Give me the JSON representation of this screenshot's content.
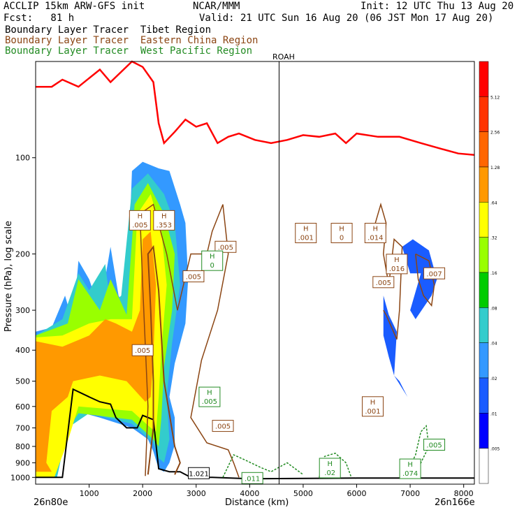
{
  "header": {
    "model": "ACCLIP 15km ARW-GFS init",
    "org": "NCAR/MMM",
    "init": "Init: 12 UTC Thu 13 Aug 20",
    "fcst": "Fcst:   81 h",
    "valid": "Valid: 21 UTC Sun 16 Aug 20 (06 JST Mon 17 Aug 20)"
  },
  "legend": [
    {
      "label": "Boundary Layer Tracer  Tibet Region",
      "color": "#000000"
    },
    {
      "label": "Boundary Layer Tracer  Eastern China Region",
      "color": "#8b4513"
    },
    {
      "label": "Boundary Layer Tracer  West Pacific Region",
      "color": "#228b22"
    }
  ],
  "chart_data": {
    "type": "cross-section",
    "title": "",
    "xlabel": "Distance (km)",
    "ylabel": "Pressure (hPa), log scale",
    "xlim": [
      0,
      8200
    ],
    "ylim": [
      1050,
      50
    ],
    "y_scale": "log",
    "x_ticks": [
      1000,
      2000,
      3000,
      4000,
      5000,
      6000,
      7000,
      8000
    ],
    "y_ticks": [
      100,
      200,
      300,
      400,
      500,
      600,
      700,
      800,
      900,
      1000
    ],
    "endpoint_left": "26n80e",
    "endpoint_right": "26n166e",
    "vertical_marker": {
      "label": "ROAH",
      "x": 4550
    },
    "colorbar": {
      "levels": [
        ".005",
        ".01",
        ".02",
        ".04",
        ".08",
        ".16",
        ".32",
        ".64",
        "1.28",
        "2.56",
        "5.12"
      ],
      "colors": [
        "#ffffff",
        "#0000ff",
        "#1a5cff",
        "#3399ff",
        "#33cccc",
        "#00cc00",
        "#99ff00",
        "#ffff00",
        "#ff9900",
        "#ff6600",
        "#ff3300",
        "#ff0000"
      ]
    },
    "tropopause_color": "#ff0000",
    "annotations": [
      {
        "label": "H",
        "value": ".005",
        "x": 1950,
        "p": 157,
        "color": "#8b4513"
      },
      {
        "label": "H",
        "value": ".353",
        "x": 2400,
        "p": 157,
        "color": "#8b4513"
      },
      {
        "label": "",
        "value": ".005",
        "x": 3550,
        "p": 190,
        "color": "#8b4513"
      },
      {
        "label": "H",
        "value": "0",
        "x": 3300,
        "p": 210,
        "color": "#228b22"
      },
      {
        "label": "",
        "value": ".005",
        "x": 2950,
        "p": 235,
        "color": "#8b4513"
      },
      {
        "label": "H",
        "value": ".001",
        "x": 5050,
        "p": 172,
        "color": "#8b4513"
      },
      {
        "label": "H",
        "value": "0",
        "x": 5720,
        "p": 172,
        "color": "#8b4513"
      },
      {
        "label": "H",
        "value": ".014",
        "x": 6350,
        "p": 172,
        "color": "#8b4513"
      },
      {
        "label": "H",
        "value": ".016",
        "x": 6750,
        "p": 215,
        "color": "#8b4513"
      },
      {
        "label": "",
        "value": ".005",
        "x": 6500,
        "p": 245,
        "color": "#8b4513"
      },
      {
        "label": "",
        "value": ".007",
        "x": 7450,
        "p": 230,
        "color": "#8b4513"
      },
      {
        "label": "",
        "value": ".005",
        "x": 2000,
        "p": 400,
        "color": "#8b4513"
      },
      {
        "label": "H",
        "value": ".005",
        "x": 3250,
        "p": 560,
        "color": "#228b22"
      },
      {
        "label": "",
        "value": ".005",
        "x": 3500,
        "p": 690,
        "color": "#8b4513"
      },
      {
        "label": "H",
        "value": ".001",
        "x": 6300,
        "p": 600,
        "color": "#8b4513"
      },
      {
        "label": "",
        "value": ".005",
        "x": 7450,
        "p": 790,
        "color": "#228b22"
      },
      {
        "label": "H",
        "value": ".074",
        "x": 7000,
        "p": 940,
        "color": "#228b22"
      },
      {
        "label": "",
        "value": "1.021",
        "x": 3050,
        "p": 970,
        "color": "#000000"
      },
      {
        "label": "",
        "value": ".011",
        "x": 4050,
        "p": 1005,
        "color": "#228b22"
      },
      {
        "label": "H",
        "value": ".02",
        "x": 5500,
        "p": 935,
        "color": "#228b22"
      }
    ]
  }
}
